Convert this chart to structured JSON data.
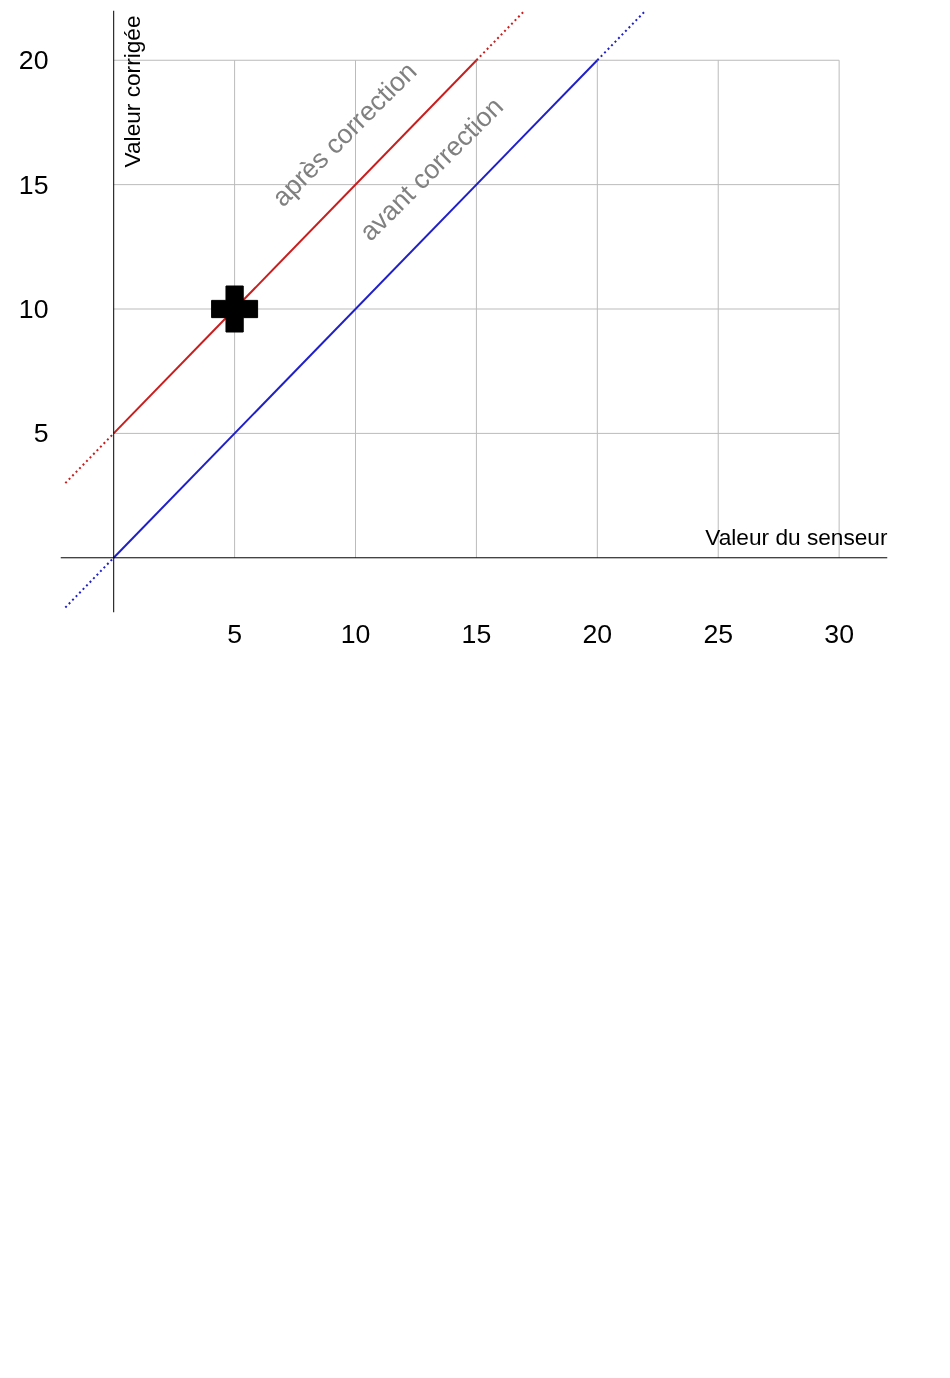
{
  "chart_data": {
    "type": "line",
    "xlabel": "Valeur du senseur",
    "ylabel": "Valeur corrigée",
    "xlim": [
      -2.2,
      32
    ],
    "ylim": [
      -2.2,
      22
    ],
    "xticks": [
      5,
      10,
      15,
      20,
      25,
      30
    ],
    "yticks": [
      5,
      10,
      15,
      20
    ],
    "grid": true,
    "line_style": "solid",
    "marker": "none",
    "series": [
      {
        "name": "après correction",
        "color": "#c81e1e",
        "x": [
          0,
          15
        ],
        "values": [
          5,
          20
        ]
      },
      {
        "color": "#c81e1e",
        "line_style": "dotted",
        "x": [
          -2,
          0
        ],
        "values": [
          3,
          5
        ]
      },
      {
        "color": "#c81e1e",
        "line_style": "dotted",
        "x": [
          15,
          17
        ],
        "values": [
          20,
          22
        ]
      },
      {
        "name": "avant correction",
        "color": "#2020c8",
        "x": [
          0,
          20
        ],
        "values": [
          0,
          20
        ]
      },
      {
        "color": "#2020c8",
        "line_style": "dotted",
        "x": [
          -2,
          0
        ],
        "values": [
          -2,
          0
        ]
      },
      {
        "color": "#2020c8",
        "line_style": "dotted",
        "x": [
          20,
          22
        ],
        "values": [
          20,
          22
        ]
      },
      {
        "type": "scatter",
        "marker": "cross",
        "color": "#000000",
        "x": [
          5
        ],
        "values": [
          10
        ]
      }
    ]
  }
}
